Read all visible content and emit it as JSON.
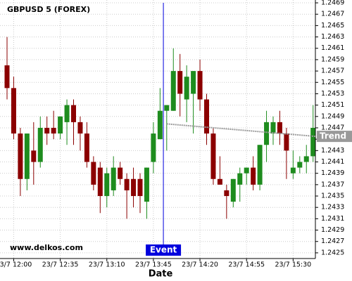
{
  "chart_data": {
    "type": "candlestick",
    "title": "GBPUSD 5 (FOREX)",
    "watermark": "www.delkos.com",
    "x_label": "Date",
    "x": [
      "23/7 11:55",
      "23/7 12:00",
      "23/7 12:05",
      "23/7 12:10",
      "23/7 12:15",
      "23/7 12:20",
      "23/7 12:25",
      "23/7 12:30",
      "23/7 12:35",
      "23/7 12:40",
      "23/7 12:45",
      "23/7 12:50",
      "23/7 12:55",
      "23/7 13:00",
      "23/7 13:05",
      "23/7 13:10",
      "23/7 13:15",
      "23/7 13:20",
      "23/7 13:25",
      "23/7 13:30",
      "23/7 13:35",
      "23/7 13:40",
      "23/7 13:45",
      "23/7 13:50",
      "23/7 13:55",
      "23/7 14:00",
      "23/7 14:05",
      "23/7 14:10",
      "23/7 14:15",
      "23/7 14:20",
      "23/7 14:25",
      "23/7 14:30",
      "23/7 14:35",
      "23/7 14:40",
      "23/7 14:45",
      "23/7 14:50",
      "23/7 14:55",
      "23/7 15:00",
      "23/7 15:05",
      "23/7 15:10",
      "23/7 15:15",
      "23/7 15:20",
      "23/7 15:25",
      "23/7 15:30",
      "23/7 15:35",
      "23/7 15:40",
      "23/7 15:45"
    ],
    "open": [
      1.2458,
      1.2454,
      1.2446,
      1.2438,
      1.2443,
      1.2441,
      1.2447,
      1.2447,
      1.2446,
      1.2448,
      1.2451,
      1.2448,
      1.2446,
      1.2441,
      1.244,
      1.2435,
      1.2436,
      1.244,
      1.2438,
      1.2438,
      1.2438,
      1.2434,
      1.2441,
      1.2445,
      1.245,
      1.245,
      1.2457,
      1.2452,
      1.2453,
      1.2457,
      1.2452,
      1.2446,
      1.2438,
      1.2436,
      1.2434,
      1.2437,
      1.2439,
      1.244,
      1.2437,
      1.2444,
      1.2446,
      1.2448,
      1.2446,
      1.2439,
      1.244,
      1.2441,
      1.2442
    ],
    "high": [
      1.2463,
      1.2456,
      1.2447,
      1.2446,
      1.2448,
      1.2449,
      1.2449,
      1.245,
      1.2449,
      1.2452,
      1.2452,
      1.2449,
      1.2448,
      1.2442,
      1.2441,
      1.244,
      1.2442,
      1.2441,
      1.2439,
      1.244,
      1.2439,
      1.244,
      1.2448,
      1.2454,
      1.2451,
      1.2461,
      1.246,
      1.2458,
      1.2457,
      1.2459,
      1.2453,
      1.2447,
      1.2442,
      1.2437,
      1.2438,
      1.244,
      1.244,
      1.2442,
      1.2444,
      1.245,
      1.2449,
      1.245,
      1.2447,
      1.2443,
      1.2442,
      1.2444,
      1.2451
    ],
    "low": [
      1.2452,
      1.2445,
      1.2435,
      1.2436,
      1.2437,
      1.244,
      1.2444,
      1.2445,
      1.2445,
      1.2444,
      1.2444,
      1.2443,
      1.244,
      1.2436,
      1.2432,
      1.2433,
      1.2435,
      1.2437,
      1.2431,
      1.2433,
      1.2432,
      1.2431,
      1.2439,
      1.2445,
      1.2443,
      1.245,
      1.2449,
      1.2448,
      1.2446,
      1.245,
      1.2444,
      1.2437,
      1.2437,
      1.2431,
      1.2433,
      1.2434,
      1.2437,
      1.2436,
      1.2436,
      1.2441,
      1.2444,
      1.2444,
      1.2438,
      1.2438,
      1.2439,
      1.2439,
      1.2441
    ],
    "close": [
      1.2454,
      1.2446,
      1.2438,
      1.2446,
      1.2441,
      1.2447,
      1.2446,
      1.2446,
      1.2449,
      1.2451,
      1.2448,
      1.2446,
      1.2441,
      1.2437,
      1.2435,
      1.2439,
      1.244,
      1.2438,
      1.2436,
      1.2435,
      1.2435,
      1.244,
      1.2446,
      1.245,
      1.2451,
      1.2457,
      1.2453,
      1.2456,
      1.2457,
      1.2452,
      1.2446,
      1.2438,
      1.2437,
      1.2435,
      1.2438,
      1.2439,
      1.244,
      1.2437,
      1.2444,
      1.2448,
      1.2448,
      1.2446,
      1.2443,
      1.244,
      1.2441,
      1.2442,
      1.2447
    ],
    "up_color": "#1e8c1e",
    "down_color": "#8b0000",
    "ylim": [
      1.2424,
      1.24695
    ],
    "yticks": [
      1.2425,
      1.2427,
      1.2429,
      1.2431,
      1.2433,
      1.2435,
      1.2437,
      1.2439,
      1.2441,
      1.2443,
      1.2445,
      1.2447,
      1.2449,
      1.2451,
      1.2453,
      1.2455,
      1.2457,
      1.2459,
      1.2461,
      1.2463,
      1.2465,
      1.2467,
      1.2469
    ],
    "xticks": [
      "23/7 12:00",
      "23/7 12:35",
      "23/7 13:10",
      "23/7 13:45",
      "23/7 14:20",
      "23/7 14:55",
      "23/7 15:30"
    ],
    "grid": true,
    "event": {
      "label": "Event",
      "x": "23/7 13:50",
      "color": "#0000dd"
    },
    "trend": {
      "label": "Trend",
      "x": [
        "23/7 13:55",
        "23/7 15:45"
      ],
      "values": [
        1.24477,
        1.24455
      ],
      "color": "#999999"
    }
  }
}
